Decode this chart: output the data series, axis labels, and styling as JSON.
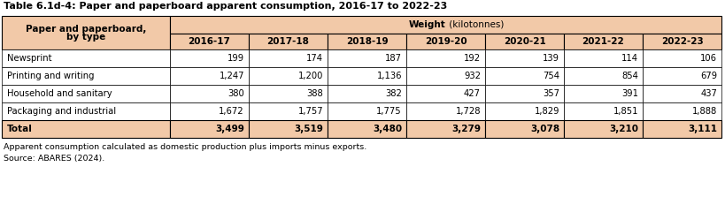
{
  "title": "Table 6.1d-4: Paper and paperboard apparent consumption, 2016-17 to 2022-23",
  "col_header_left_line1": "Paper and paperboard,",
  "col_header_left_line2": "by type",
  "years": [
    "2016-17",
    "2017-18",
    "2018-19",
    "2019-20",
    "2020-21",
    "2021-22",
    "2022-23"
  ],
  "rows": [
    {
      "label": "Newsprint",
      "values": [
        "199",
        "174",
        "187",
        "192",
        "139",
        "114",
        "106"
      ]
    },
    {
      "label": "Printing and writing",
      "values": [
        "1,247",
        "1,200",
        "1,136",
        "932",
        "754",
        "854",
        "679"
      ]
    },
    {
      "label": "Household and sanitary",
      "values": [
        "380",
        "388",
        "382",
        "427",
        "357",
        "391",
        "437"
      ]
    },
    {
      "label": "Packaging and industrial",
      "values": [
        "1,672",
        "1,757",
        "1,775",
        "1,728",
        "1,829",
        "1,851",
        "1,888"
      ]
    }
  ],
  "total_label": "Total",
  "total_values": [
    "3,499",
    "3,519",
    "3,480",
    "3,279",
    "3,078",
    "3,210",
    "3,111"
  ],
  "footnote1": "Apparent consumption calculated as domestic production plus imports minus exports.",
  "footnote2": "Source: ABARES (2024).",
  "header_bg": "#f2c9a8",
  "white_bg": "#ffffff",
  "border_color": "#000000"
}
